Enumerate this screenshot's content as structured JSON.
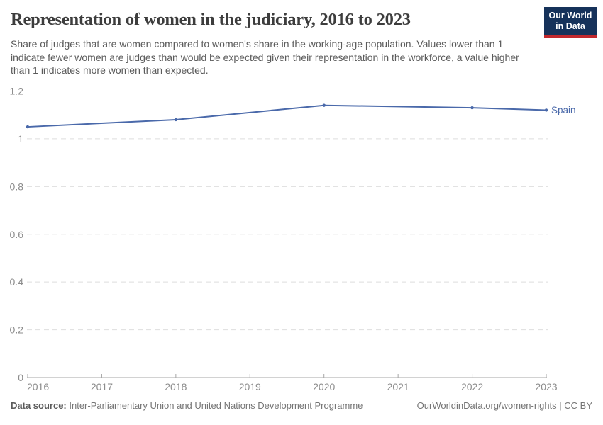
{
  "header": {
    "title": "Representation of women in the judiciary, 2016 to 2023",
    "subtitle": "Share of judges that are women compared to women's share in the working-age population. Values lower than 1 indicate fewer women are judges than would be expected given their representation in the workforce, a value higher than 1 indicates more women than expected.",
    "logo": {
      "line1": "Our World",
      "line2": "in Data"
    }
  },
  "chart_data": {
    "type": "line",
    "title": "Representation of women in the judiciary, 2016 to 2023",
    "xlabel": "",
    "ylabel": "",
    "xlim": [
      2016,
      2023
    ],
    "ylim": [
      0,
      1.2
    ],
    "x_ticks": [
      2016,
      2017,
      2018,
      2019,
      2020,
      2021,
      2022,
      2023
    ],
    "y_ticks": [
      0,
      0.2,
      0.4,
      0.6,
      0.8,
      1,
      1.2
    ],
    "grid": "dashed-horizontal",
    "legend_position": "end-of-line-label",
    "series": [
      {
        "name": "Spain",
        "color": "#4a69aa",
        "points": [
          {
            "x": 2016,
            "y": 1.05
          },
          {
            "x": 2018,
            "y": 1.08
          },
          {
            "x": 2020,
            "y": 1.14
          },
          {
            "x": 2022,
            "y": 1.13
          },
          {
            "x": 2023,
            "y": 1.12
          }
        ]
      }
    ]
  },
  "footer": {
    "datasource_label": "Data source:",
    "datasource_value": " Inter-Parliamentary Union and United Nations Development Programme",
    "link": "OurWorldinData.org/women-rights | CC BY"
  },
  "colors": {
    "line_blue": "#4a69aa",
    "logo_navy": "#16325a",
    "logo_red": "#c2282d",
    "gridline": "#dedede",
    "axis_gray": "#a6a6a6",
    "tick_label_gray": "#8c8c8c"
  }
}
